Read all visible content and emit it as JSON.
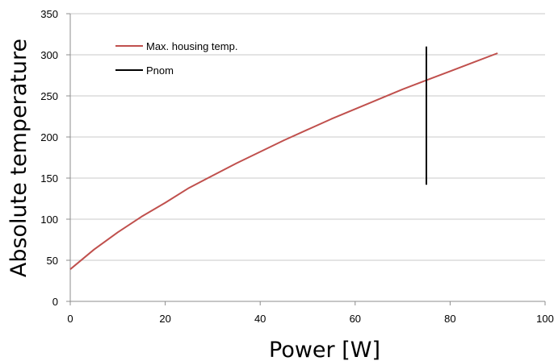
{
  "chart_data": {
    "type": "line",
    "title": "",
    "xlabel": "Power [W]",
    "ylabel": "Absolute temperature",
    "xlim": [
      0,
      100
    ],
    "ylim": [
      0,
      350
    ],
    "xticks": [
      0,
      20,
      40,
      60,
      80,
      100
    ],
    "yticks": [
      0,
      50,
      100,
      150,
      200,
      250,
      300,
      350
    ],
    "grid": "horizontal",
    "legend_position": "top-left",
    "series": [
      {
        "name": "Max. housing temp.",
        "color": "#c0504d",
        "x": [
          0,
          5,
          10,
          15,
          20,
          25,
          30,
          35,
          40,
          45,
          50,
          55,
          60,
          65,
          70,
          75,
          80,
          85,
          90
        ],
        "y": [
          39,
          63,
          84,
          103,
          120,
          138,
          153,
          168,
          182,
          196,
          209,
          222,
          234,
          246,
          258,
          269,
          280,
          291,
          302
        ]
      },
      {
        "name": "Pnom",
        "color": "#000000",
        "x": [
          75,
          75
        ],
        "y": [
          142,
          310
        ]
      }
    ]
  }
}
